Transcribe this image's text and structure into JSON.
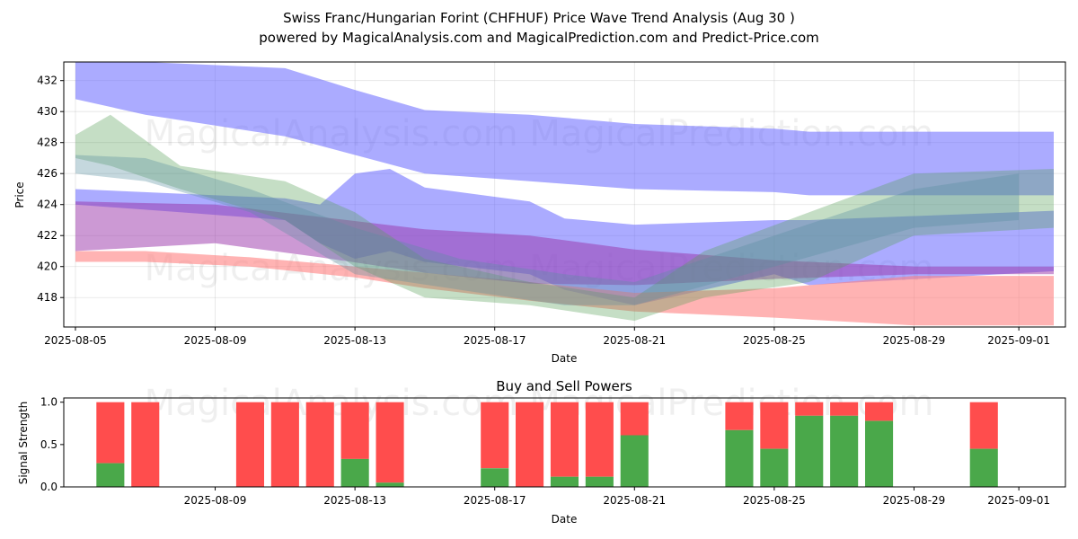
{
  "title_line1": "Swiss Franc/Hungarian Forint (CHFHUF) Price Wave Trend Analysis (Aug 30 )",
  "title_line2": "powered by MagicalAnalysis.com and MagicalPrediction.com and Predict-Price.com",
  "watermark_text": "MagicalAnalysis.com    MagicalPrediction.com",
  "colors": {
    "blue_band": "#6666ff",
    "red_band": "#ff8080",
    "green_band": "#5aa05a",
    "purple_band": "#9933aa",
    "buy": "#4aa84a",
    "sell": "#ff4d4d"
  },
  "chart_data": [
    {
      "type": "area",
      "xlabel": "Date",
      "ylabel": "Price",
      "xlim": [
        "2025-08-04T16:00",
        "2025-09-02T08:00"
      ],
      "ylim": [
        416.1,
        433.2
      ],
      "x_ticks": [
        "2025-08-05",
        "2025-08-09",
        "2025-08-13",
        "2025-08-17",
        "2025-08-21",
        "2025-08-25",
        "2025-08-29",
        "2025-09-01"
      ],
      "y_ticks": [
        418,
        420,
        422,
        424,
        426,
        428,
        430,
        432
      ],
      "grid": true,
      "bands": [
        {
          "color": "blue",
          "x": [
            "2025-08-05",
            "2025-08-07",
            "2025-08-11",
            "2025-08-13",
            "2025-08-15",
            "2025-08-18",
            "2025-08-21",
            "2025-08-25",
            "2025-08-26",
            "2025-09-02"
          ],
          "lower": [
            430.8,
            429.8,
            428.4,
            427.2,
            426.0,
            425.5,
            425.0,
            424.8,
            424.6,
            424.6
          ],
          "upper": [
            433.2,
            433.2,
            432.8,
            431.4,
            430.1,
            429.8,
            429.2,
            428.9,
            428.7,
            428.7
          ]
        },
        {
          "color": "blue",
          "x": [
            "2025-08-05",
            "2025-08-08",
            "2025-08-11",
            "2025-08-12",
            "2025-08-13",
            "2025-08-14",
            "2025-08-15",
            "2025-08-18",
            "2025-08-19",
            "2025-08-21",
            "2025-08-25",
            "2025-08-26",
            "2025-09-02"
          ],
          "lower": [
            424.0,
            423.5,
            423.0,
            421.5,
            420.5,
            421.0,
            420.3,
            419.5,
            418.5,
            417.5,
            419.5,
            418.8,
            419.7
          ],
          "upper": [
            425.0,
            424.7,
            424.4,
            424.0,
            426.0,
            426.3,
            425.1,
            424.2,
            423.1,
            422.7,
            423.0,
            423.0,
            423.6
          ]
        },
        {
          "color": "red",
          "x": [
            "2025-08-05",
            "2025-08-07",
            "2025-08-10",
            "2025-08-13",
            "2025-08-15",
            "2025-08-18",
            "2025-08-21",
            "2025-08-25",
            "2025-08-29",
            "2025-09-02"
          ],
          "lower": [
            420.3,
            420.3,
            420.0,
            419.3,
            418.6,
            417.8,
            417.1,
            416.7,
            416.2,
            416.2
          ],
          "upper": [
            421.0,
            421.0,
            420.6,
            420.0,
            419.6,
            419.0,
            418.3,
            418.6,
            419.4,
            419.4
          ]
        },
        {
          "color": "purple",
          "x": [
            "2025-08-05",
            "2025-08-09",
            "2025-08-12",
            "2025-08-15",
            "2025-08-18",
            "2025-08-21",
            "2025-08-25",
            "2025-08-29",
            "2025-09-02"
          ],
          "lower": [
            421.0,
            421.5,
            420.6,
            419.6,
            418.9,
            418.8,
            419.2,
            419.5,
            419.5
          ],
          "upper": [
            424.2,
            424.0,
            423.2,
            422.4,
            422.0,
            421.1,
            420.4,
            420.0,
            420.0
          ]
        },
        {
          "color": "green",
          "x": [
            "2025-08-05",
            "2025-08-06",
            "2025-08-08",
            "2025-08-11",
            "2025-08-13",
            "2025-08-15",
            "2025-08-18",
            "2025-08-21",
            "2025-08-23",
            "2025-08-26",
            "2025-08-29",
            "2025-09-02"
          ],
          "lower": [
            427.0,
            426.5,
            425.0,
            423.0,
            420.0,
            418.0,
            417.5,
            416.5,
            418.0,
            419.0,
            422.0,
            422.5
          ],
          "upper": [
            428.5,
            429.8,
            426.5,
            425.5,
            423.5,
            420.5,
            419.0,
            418.0,
            421.0,
            423.5,
            426.0,
            426.3
          ]
        },
        {
          "color": "bluegreen",
          "x": [
            "2025-08-05",
            "2025-08-07",
            "2025-08-10",
            "2025-08-13",
            "2025-08-16",
            "2025-08-19",
            "2025-08-21",
            "2025-08-25",
            "2025-08-29",
            "2025-09-01"
          ],
          "lower": [
            426.0,
            425.5,
            423.5,
            419.5,
            418.5,
            417.5,
            417.5,
            420.0,
            422.5,
            423.0
          ],
          "upper": [
            427.2,
            427.0,
            425.0,
            422.5,
            420.5,
            419.5,
            419.0,
            422.0,
            425.0,
            426.0
          ]
        }
      ]
    },
    {
      "type": "bar",
      "title": "Buy and Sell Powers",
      "xlabel": "Date",
      "ylabel": "Signal Strength",
      "ylim": [
        0,
        1.05
      ],
      "y_ticks": [
        "0.0",
        "0.5",
        "1.0"
      ],
      "x_ticks": [
        "2025-08-09",
        "2025-08-13",
        "2025-08-17",
        "2025-08-21",
        "2025-08-25",
        "2025-08-29",
        "2025-09-01"
      ],
      "series": [
        {
          "name": "Buy"
        },
        {
          "name": "Sell"
        }
      ],
      "bars": [
        {
          "date": "2025-08-06",
          "buy": 0.28
        },
        {
          "date": "2025-08-07",
          "buy": 0.0
        },
        {
          "date": "2025-08-10",
          "buy": 0.0
        },
        {
          "date": "2025-08-11",
          "buy": 0.0
        },
        {
          "date": "2025-08-12",
          "buy": 0.0
        },
        {
          "date": "2025-08-13",
          "buy": 0.33
        },
        {
          "date": "2025-08-14",
          "buy": 0.05
        },
        {
          "date": "2025-08-17",
          "buy": 0.22
        },
        {
          "date": "2025-08-18",
          "buy": 0.0
        },
        {
          "date": "2025-08-19",
          "buy": 0.12
        },
        {
          "date": "2025-08-20",
          "buy": 0.12
        },
        {
          "date": "2025-08-21",
          "buy": 0.61
        },
        {
          "date": "2025-08-24",
          "buy": 0.67
        },
        {
          "date": "2025-08-25",
          "buy": 0.45
        },
        {
          "date": "2025-08-26",
          "buy": 0.84
        },
        {
          "date": "2025-08-27",
          "buy": 0.84
        },
        {
          "date": "2025-08-28",
          "buy": 0.78
        },
        {
          "date": "2025-08-31",
          "buy": 0.45
        }
      ]
    }
  ]
}
